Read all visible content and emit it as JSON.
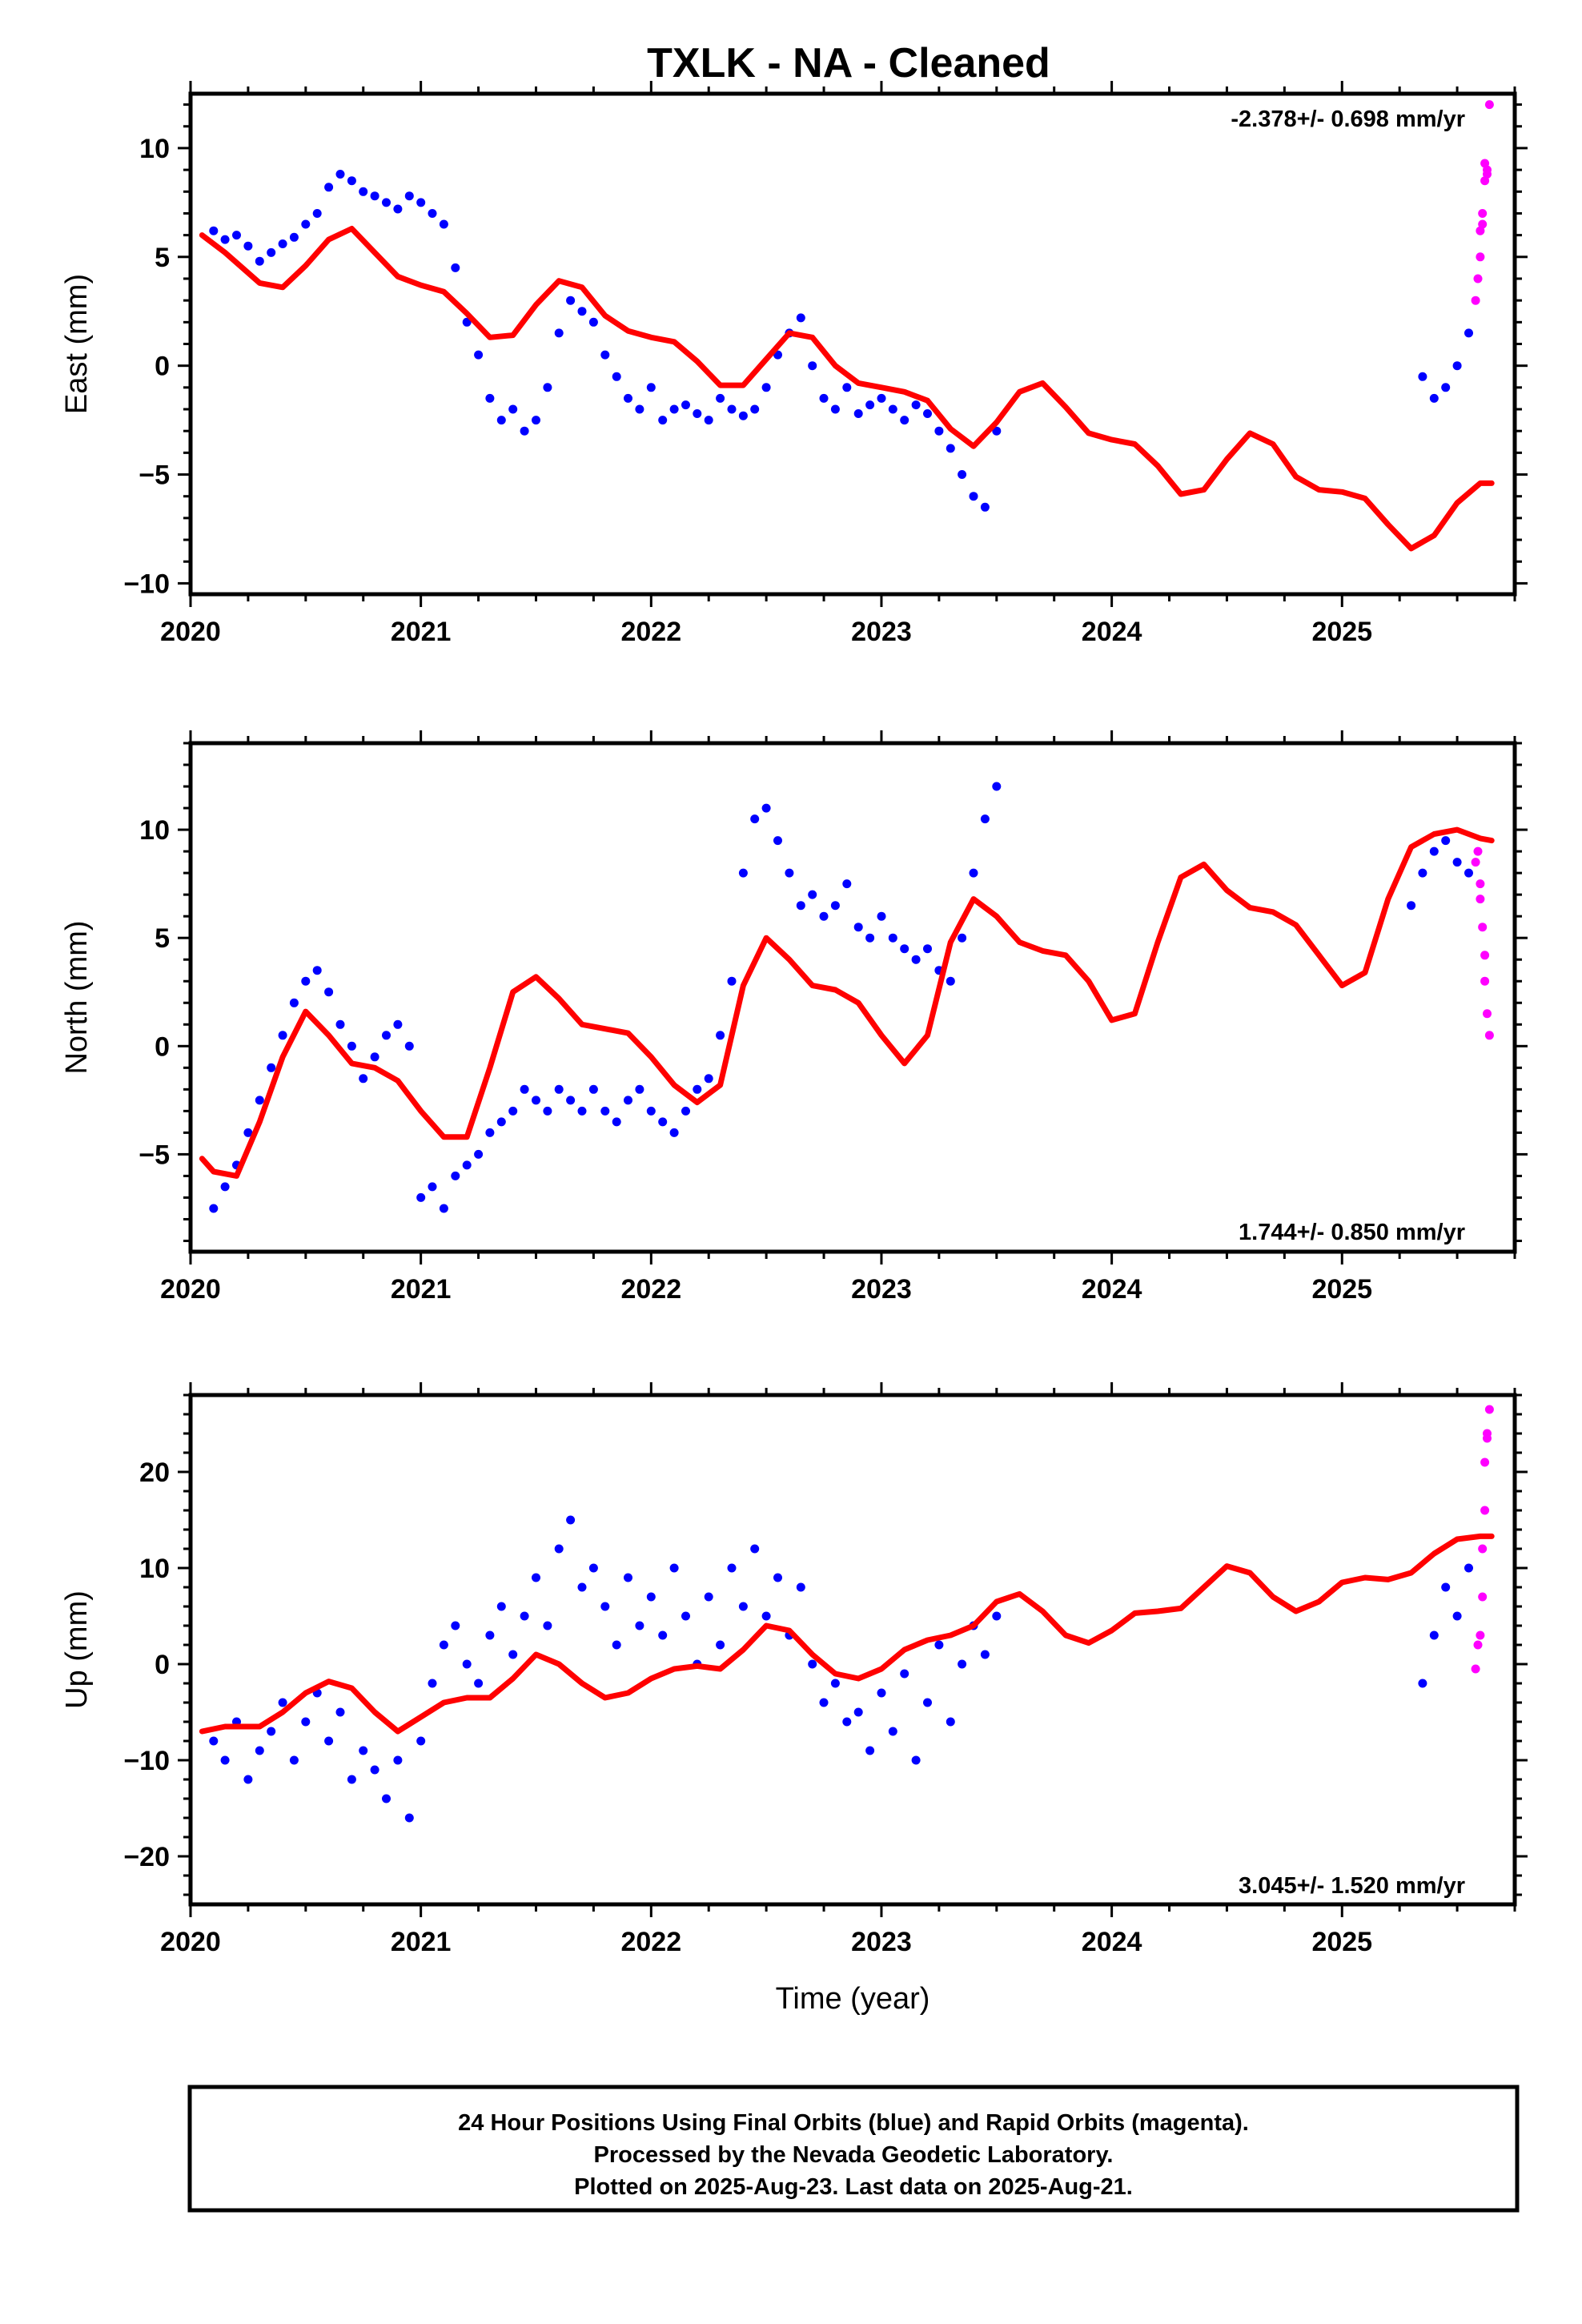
{
  "title": "TXLK  - NA - Cleaned",
  "footer": {
    "lines": [
      "24 Hour Positions Using Final Orbits (blue) and Rapid Orbits (magenta).",
      "Processed by the Nevada Geodetic Laboratory.",
      "Plotted on 2025-Aug-23. Last data on 2025-Aug-21."
    ]
  },
  "colors": {
    "final_orbits": "#0000ff",
    "rapid_orbits": "#ff00ff",
    "model": "#ff0000"
  },
  "chart_data": [
    {
      "type": "scatter",
      "ylabel": "East (mm)",
      "xlabel": "",
      "xlim": [
        2020,
        2025.75
      ],
      "ylim": [
        -10.5,
        12.5
      ],
      "xticks": [
        "2020",
        "2021",
        "2022",
        "2023",
        "2024",
        "2025"
      ],
      "yticks": [
        -10,
        -5,
        0,
        5,
        10
      ],
      "rate_label": "-2.378+/- 0.698 mm/yr",
      "series": [
        {
          "name": "Final Orbits",
          "color": "#0000ff",
          "x": [
            2020.1,
            2020.15,
            2020.2,
            2020.25,
            2020.3,
            2020.35,
            2020.4,
            2020.45,
            2020.5,
            2020.55,
            2020.6,
            2020.65,
            2020.7,
            2020.75,
            2020.8,
            2020.85,
            2020.9,
            2020.95,
            2021.0,
            2021.05,
            2021.1,
            2021.15,
            2021.2,
            2021.25,
            2021.3,
            2021.35,
            2021.4,
            2021.45,
            2021.5,
            2021.55,
            2021.6,
            2021.65,
            2021.7,
            2021.75,
            2021.8,
            2021.85,
            2021.9,
            2021.95,
            2022.0,
            2022.05,
            2022.1,
            2022.15,
            2022.2,
            2022.25,
            2022.3,
            2022.35,
            2022.4,
            2022.45,
            2022.5,
            2022.55,
            2022.6,
            2022.65,
            2022.7,
            2022.75,
            2022.8,
            2022.85,
            2022.9,
            2022.95,
            2023.0,
            2023.05,
            2023.1,
            2023.15,
            2023.2,
            2023.25,
            2023.3,
            2023.35,
            2023.4,
            2023.45,
            2023.5,
            2025.35,
            2025.4,
            2025.45,
            2025.5,
            2025.55
          ],
          "y": [
            6.2,
            5.8,
            6.0,
            5.5,
            4.8,
            5.2,
            5.6,
            5.9,
            6.5,
            7.0,
            8.2,
            8.8,
            8.5,
            8.0,
            7.8,
            7.5,
            7.2,
            7.8,
            7.5,
            7.0,
            6.5,
            4.5,
            2.0,
            0.5,
            -1.5,
            -2.5,
            -2.0,
            -3.0,
            -2.5,
            -1.0,
            1.5,
            3.0,
            2.5,
            2.0,
            0.5,
            -0.5,
            -1.5,
            -2.0,
            -1.0,
            -2.5,
            -2.0,
            -1.8,
            -2.2,
            -2.5,
            -1.5,
            -2.0,
            -2.3,
            -2.0,
            -1.0,
            0.5,
            1.5,
            2.2,
            0.0,
            -1.5,
            -2.0,
            -1.0,
            -2.2,
            -1.8,
            -1.5,
            -2.0,
            -2.5,
            -1.8,
            -2.2,
            -3.0,
            -3.8,
            -5.0,
            -6.0,
            -6.5,
            -3.0,
            -0.5,
            -1.5,
            -1.0,
            0.0,
            1.5
          ]
        },
        {
          "name": "Rapid Orbits",
          "color": "#ff00ff",
          "x": [
            2025.58,
            2025.59,
            2025.6,
            2025.6,
            2025.61,
            2025.61,
            2025.62,
            2025.62,
            2025.63,
            2025.63,
            2025.64
          ],
          "y": [
            3.0,
            4.0,
            5.0,
            6.2,
            7.0,
            6.5,
            8.5,
            9.3,
            9.0,
            8.8,
            12.0
          ]
        },
        {
          "name": "Model",
          "color": "#ff0000",
          "x": [
            2020.05,
            2020.15,
            2020.3,
            2020.4,
            2020.5,
            2020.6,
            2020.7,
            2020.8,
            2020.9,
            2021.0,
            2021.1,
            2021.2,
            2021.3,
            2021.4,
            2021.5,
            2021.6,
            2021.7,
            2021.8,
            2021.9,
            2022.0,
            2022.1,
            2022.2,
            2022.3,
            2022.4,
            2022.5,
            2022.6,
            2022.7,
            2022.8,
            2022.9,
            2023.0,
            2023.1,
            2023.2,
            2023.3,
            2023.4,
            2023.5,
            2023.6,
            2023.7,
            2023.8,
            2023.9,
            2024.0,
            2024.1,
            2024.2,
            2024.3,
            2024.4,
            2024.5,
            2024.6,
            2024.7,
            2024.8,
            2024.9,
            2025.0,
            2025.1,
            2025.2,
            2025.3,
            2025.4,
            2025.5,
            2025.6,
            2025.65
          ],
          "y": [
            6.0,
            5.2,
            3.8,
            3.6,
            4.6,
            5.8,
            6.3,
            5.2,
            4.1,
            3.7,
            3.4,
            2.4,
            1.3,
            1.4,
            2.8,
            3.9,
            3.6,
            2.3,
            1.6,
            1.3,
            1.1,
            0.2,
            -0.9,
            -0.9,
            0.3,
            1.5,
            1.3,
            0.0,
            -0.8,
            -1.0,
            -1.2,
            -1.6,
            -2.9,
            -3.7,
            -2.6,
            -1.2,
            -0.8,
            -1.9,
            -3.1,
            -3.4,
            -3.6,
            -4.6,
            -5.9,
            -5.7,
            -4.3,
            -3.1,
            -3.6,
            -5.1,
            -5.7,
            -5.8,
            -6.1,
            -7.3,
            -8.4,
            -7.8,
            -6.3,
            -5.4,
            -5.4
          ]
        }
      ]
    },
    {
      "type": "scatter",
      "ylabel": "North (mm)",
      "xlabel": "",
      "xlim": [
        2020,
        2025.75
      ],
      "ylim": [
        -9.5,
        14.0
      ],
      "xticks": [
        "2020",
        "2021",
        "2022",
        "2023",
        "2024",
        "2025"
      ],
      "yticks": [
        -5,
        0,
        5,
        10
      ],
      "rate_label": "1.744+/- 0.850 mm/yr",
      "series": [
        {
          "name": "Final Orbits",
          "color": "#0000ff",
          "x": [
            2020.1,
            2020.15,
            2020.2,
            2020.25,
            2020.3,
            2020.35,
            2020.4,
            2020.45,
            2020.5,
            2020.55,
            2020.6,
            2020.65,
            2020.7,
            2020.75,
            2020.8,
            2020.85,
            2020.9,
            2020.95,
            2021.0,
            2021.05,
            2021.1,
            2021.15,
            2021.2,
            2021.25,
            2021.3,
            2021.35,
            2021.4,
            2021.45,
            2021.5,
            2021.55,
            2021.6,
            2021.65,
            2021.7,
            2021.75,
            2021.8,
            2021.85,
            2021.9,
            2021.95,
            2022.0,
            2022.05,
            2022.1,
            2022.15,
            2022.2,
            2022.25,
            2022.3,
            2022.35,
            2022.4,
            2022.45,
            2022.5,
            2022.55,
            2022.6,
            2022.65,
            2022.7,
            2022.75,
            2022.8,
            2022.85,
            2022.9,
            2022.95,
            2023.0,
            2023.05,
            2023.1,
            2023.15,
            2023.2,
            2023.25,
            2023.3,
            2023.35,
            2023.4,
            2023.45,
            2023.5,
            2025.3,
            2025.35,
            2025.4,
            2025.45,
            2025.5,
            2025.55
          ],
          "y": [
            -7.5,
            -6.5,
            -5.5,
            -4.0,
            -2.5,
            -1.0,
            0.5,
            2.0,
            3.0,
            3.5,
            2.5,
            1.0,
            0.0,
            -1.5,
            -0.5,
            0.5,
            1.0,
            0.0,
            -7.0,
            -6.5,
            -7.5,
            -6.0,
            -5.5,
            -5.0,
            -4.0,
            -3.5,
            -3.0,
            -2.0,
            -2.5,
            -3.0,
            -2.0,
            -2.5,
            -3.0,
            -2.0,
            -3.0,
            -3.5,
            -2.5,
            -2.0,
            -3.0,
            -3.5,
            -4.0,
            -3.0,
            -2.0,
            -1.5,
            0.5,
            3.0,
            8.0,
            10.5,
            11.0,
            9.5,
            8.0,
            6.5,
            7.0,
            6.0,
            6.5,
            7.5,
            5.5,
            5.0,
            6.0,
            5.0,
            4.5,
            4.0,
            4.5,
            3.5,
            3.0,
            5.0,
            8.0,
            10.5,
            12.0,
            6.5,
            8.0,
            9.0,
            9.5,
            8.5,
            8.0
          ]
        },
        {
          "name": "Rapid Orbits",
          "color": "#ff00ff",
          "x": [
            2025.58,
            2025.59,
            2025.6,
            2025.6,
            2025.61,
            2025.62,
            2025.62,
            2025.63,
            2025.64
          ],
          "y": [
            8.5,
            9.0,
            7.5,
            6.8,
            5.5,
            4.2,
            3.0,
            1.5,
            0.5
          ]
        },
        {
          "name": "Model",
          "color": "#ff0000",
          "x": [
            2020.05,
            2020.1,
            2020.2,
            2020.3,
            2020.4,
            2020.5,
            2020.6,
            2020.7,
            2020.8,
            2020.9,
            2021.0,
            2021.1,
            2021.2,
            2021.3,
            2021.4,
            2021.5,
            2021.6,
            2021.7,
            2021.8,
            2021.9,
            2022.0,
            2022.1,
            2022.2,
            2022.3,
            2022.4,
            2022.5,
            2022.6,
            2022.7,
            2022.8,
            2022.9,
            2023.0,
            2023.1,
            2023.2,
            2023.3,
            2023.4,
            2023.5,
            2023.6,
            2023.7,
            2023.8,
            2023.9,
            2024.0,
            2024.1,
            2024.2,
            2024.3,
            2024.4,
            2024.5,
            2024.6,
            2024.7,
            2024.8,
            2024.9,
            2025.0,
            2025.1,
            2025.2,
            2025.3,
            2025.4,
            2025.5,
            2025.6,
            2025.65
          ],
          "y": [
            -5.2,
            -5.8,
            -6.0,
            -3.5,
            -0.5,
            1.6,
            0.5,
            -0.8,
            -1.0,
            -1.6,
            -3.0,
            -4.2,
            -4.2,
            -1.0,
            2.5,
            3.2,
            2.2,
            1.0,
            0.8,
            0.6,
            -0.5,
            -1.8,
            -2.6,
            -1.8,
            2.8,
            5.0,
            4.0,
            2.8,
            2.6,
            2.0,
            0.5,
            -0.8,
            0.5,
            4.8,
            6.8,
            6.0,
            4.8,
            4.4,
            4.2,
            3.0,
            1.2,
            1.5,
            4.8,
            7.8,
            8.4,
            7.2,
            6.4,
            6.2,
            5.6,
            4.2,
            2.8,
            3.4,
            6.8,
            9.2,
            9.8,
            10.0,
            9.6,
            9.5
          ]
        }
      ]
    },
    {
      "type": "scatter",
      "ylabel": "Up (mm)",
      "xlabel": "Time (year)",
      "xlim": [
        2020,
        2025.75
      ],
      "ylim": [
        -25,
        28
      ],
      "xticks": [
        "2020",
        "2021",
        "2022",
        "2023",
        "2024",
        "2025"
      ],
      "yticks": [
        -20,
        -10,
        0,
        10,
        20
      ],
      "rate_label": "3.045+/- 1.520 mm/yr",
      "series": [
        {
          "name": "Final Orbits",
          "color": "#0000ff",
          "x": [
            2020.1,
            2020.15,
            2020.2,
            2020.25,
            2020.3,
            2020.35,
            2020.4,
            2020.45,
            2020.5,
            2020.55,
            2020.6,
            2020.65,
            2020.7,
            2020.75,
            2020.8,
            2020.85,
            2020.9,
            2020.95,
            2021.0,
            2021.05,
            2021.1,
            2021.15,
            2021.2,
            2021.25,
            2021.3,
            2021.35,
            2021.4,
            2021.45,
            2021.5,
            2021.55,
            2021.6,
            2021.65,
            2021.7,
            2021.75,
            2021.8,
            2021.85,
            2021.9,
            2021.95,
            2022.0,
            2022.05,
            2022.1,
            2022.15,
            2022.2,
            2022.25,
            2022.3,
            2022.35,
            2022.4,
            2022.45,
            2022.5,
            2022.55,
            2022.6,
            2022.65,
            2022.7,
            2022.75,
            2022.8,
            2022.85,
            2022.9,
            2022.95,
            2023.0,
            2023.05,
            2023.1,
            2023.15,
            2023.2,
            2023.25,
            2023.3,
            2023.35,
            2023.4,
            2023.45,
            2023.5,
            2025.35,
            2025.4,
            2025.45,
            2025.5,
            2025.55
          ],
          "y": [
            -8.0,
            -10.0,
            -6.0,
            -12.0,
            -9.0,
            -7.0,
            -4.0,
            -10.0,
            -6.0,
            -3.0,
            -8.0,
            -5.0,
            -12.0,
            -9.0,
            -11.0,
            -14.0,
            -10.0,
            -16.0,
            -8.0,
            -2.0,
            2.0,
            4.0,
            0.0,
            -2.0,
            3.0,
            6.0,
            1.0,
            5.0,
            9.0,
            4.0,
            12.0,
            15.0,
            8.0,
            10.0,
            6.0,
            2.0,
            9.0,
            4.0,
            7.0,
            3.0,
            10.0,
            5.0,
            0.0,
            7.0,
            2.0,
            10.0,
            6.0,
            12.0,
            5.0,
            9.0,
            3.0,
            8.0,
            0.0,
            -4.0,
            -2.0,
            -6.0,
            -5.0,
            -9.0,
            -3.0,
            -7.0,
            -1.0,
            -10.0,
            -4.0,
            2.0,
            -6.0,
            0.0,
            4.0,
            1.0,
            5.0,
            -2.0,
            3.0,
            8.0,
            5.0,
            10.0
          ]
        },
        {
          "name": "Rapid Orbits",
          "color": "#ff00ff",
          "x": [
            2025.58,
            2025.59,
            2025.6,
            2025.61,
            2025.61,
            2025.62,
            2025.62,
            2025.63,
            2025.63,
            2025.64
          ],
          "y": [
            -0.5,
            2.0,
            3.0,
            7.0,
            12.0,
            16.0,
            21.0,
            24.0,
            23.5,
            26.5
          ]
        },
        {
          "name": "Model",
          "color": "#ff0000",
          "x": [
            2020.05,
            2020.15,
            2020.3,
            2020.4,
            2020.5,
            2020.6,
            2020.7,
            2020.8,
            2020.9,
            2021.0,
            2021.1,
            2021.2,
            2021.3,
            2021.4,
            2021.5,
            2021.6,
            2021.7,
            2021.8,
            2021.9,
            2022.0,
            2022.1,
            2022.2,
            2022.3,
            2022.4,
            2022.5,
            2022.6,
            2022.7,
            2022.8,
            2022.9,
            2023.0,
            2023.1,
            2023.2,
            2023.3,
            2023.4,
            2023.5,
            2023.6,
            2023.7,
            2023.8,
            2023.9,
            2024.0,
            2024.1,
            2024.2,
            2024.3,
            2024.4,
            2024.5,
            2024.6,
            2024.7,
            2024.8,
            2024.9,
            2025.0,
            2025.1,
            2025.2,
            2025.3,
            2025.4,
            2025.5,
            2025.6,
            2025.65
          ],
          "y": [
            -7.0,
            -6.5,
            -6.5,
            -5.0,
            -3.0,
            -1.8,
            -2.5,
            -5.0,
            -7.0,
            -5.5,
            -4.0,
            -3.5,
            -3.5,
            -1.5,
            1.0,
            0.0,
            -2.0,
            -3.5,
            -3.0,
            -1.5,
            -0.5,
            -0.2,
            -0.5,
            1.5,
            4.0,
            3.5,
            1.0,
            -1.0,
            -1.5,
            -0.5,
            1.5,
            2.5,
            3.0,
            4.0,
            6.5,
            7.3,
            5.5,
            3.0,
            2.2,
            3.5,
            5.3,
            5.5,
            5.8,
            8.0,
            10.2,
            9.5,
            7.0,
            5.5,
            6.5,
            8.5,
            9.0,
            8.8,
            9.5,
            11.5,
            13.0,
            13.3,
            13.3
          ]
        }
      ]
    }
  ]
}
